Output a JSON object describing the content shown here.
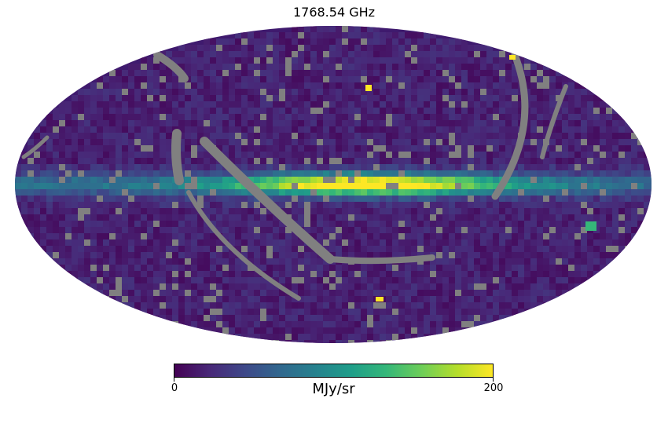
{
  "title": "1768.54 GHz",
  "projection": "mollweide",
  "colormap": {
    "name": "viridis",
    "stops": [
      "#440154",
      "#482878",
      "#3e4989",
      "#31688e",
      "#26828e",
      "#1f9e89",
      "#35b779",
      "#6ece58",
      "#b5de2b",
      "#fde725"
    ],
    "min": 0,
    "max": 200,
    "min_label": "0",
    "max_label": "200",
    "unit": "MJy/sr"
  },
  "colors": {
    "masked": "#808080",
    "background": "#ffffff"
  }
}
